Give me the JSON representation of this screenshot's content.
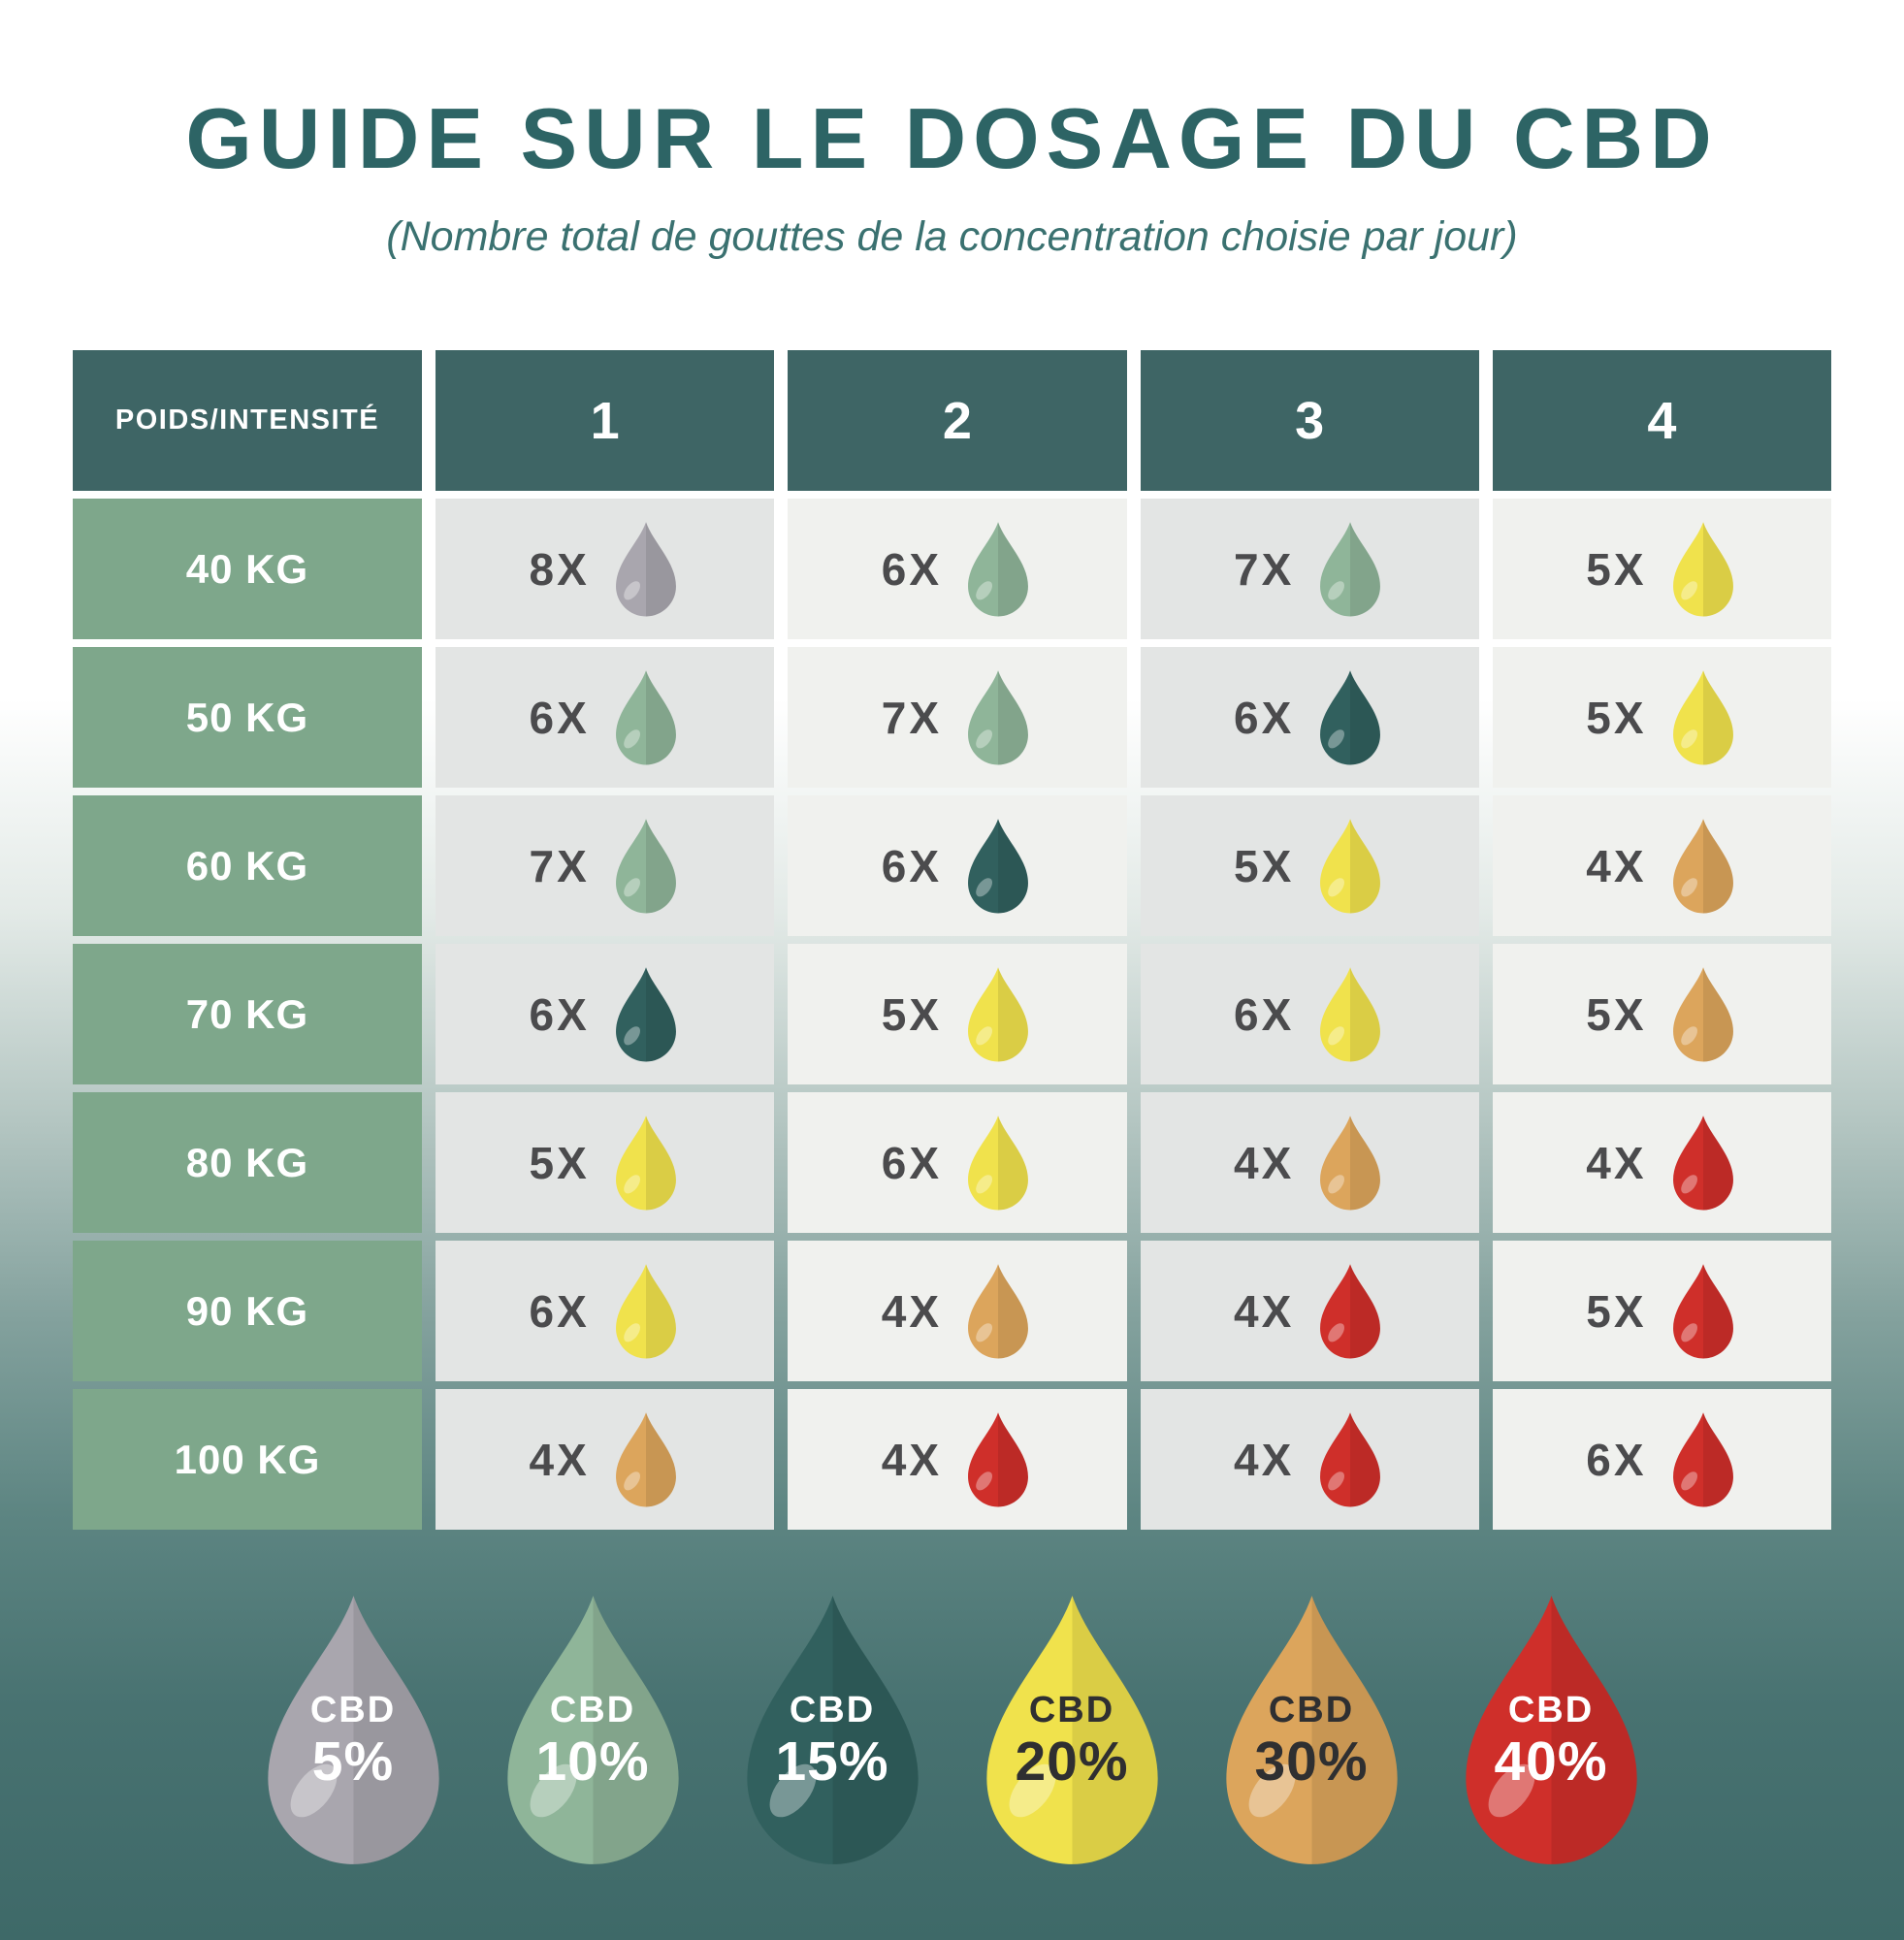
{
  "title": "GUIDE SUR LE DOSAGE DU CBD",
  "subtitle": "(Nombre total de gouttes de la concentration choisie par jour)",
  "chart_data": {
    "type": "table",
    "title": "GUIDE SUR LE DOSAGE DU CBD",
    "subtitle": "(Nombre total de gouttes de la concentration choisie par jour)",
    "corner_header": "POIDS/INTENSITÉ",
    "columns": [
      "1",
      "2",
      "3",
      "4"
    ],
    "row_labels": [
      "40 KG",
      "50 KG",
      "60 KG",
      "70 KG",
      "80 KG",
      "90 KG",
      "100 KG"
    ],
    "count_suffix": "X",
    "cells": [
      [
        {
          "drops": 8,
          "cbd": "5%"
        },
        {
          "drops": 6,
          "cbd": "10%"
        },
        {
          "drops": 7,
          "cbd": "10%"
        },
        {
          "drops": 5,
          "cbd": "20%"
        }
      ],
      [
        {
          "drops": 6,
          "cbd": "10%"
        },
        {
          "drops": 7,
          "cbd": "10%"
        },
        {
          "drops": 6,
          "cbd": "15%"
        },
        {
          "drops": 5,
          "cbd": "20%"
        }
      ],
      [
        {
          "drops": 7,
          "cbd": "10%"
        },
        {
          "drops": 6,
          "cbd": "15%"
        },
        {
          "drops": 5,
          "cbd": "20%"
        },
        {
          "drops": 4,
          "cbd": "30%"
        }
      ],
      [
        {
          "drops": 6,
          "cbd": "15%"
        },
        {
          "drops": 5,
          "cbd": "20%"
        },
        {
          "drops": 6,
          "cbd": "20%"
        },
        {
          "drops": 5,
          "cbd": "30%"
        }
      ],
      [
        {
          "drops": 5,
          "cbd": "20%"
        },
        {
          "drops": 6,
          "cbd": "20%"
        },
        {
          "drops": 4,
          "cbd": "30%"
        },
        {
          "drops": 4,
          "cbd": "40%"
        }
      ],
      [
        {
          "drops": 6,
          "cbd": "20%"
        },
        {
          "drops": 4,
          "cbd": "30%"
        },
        {
          "drops": 4,
          "cbd": "40%"
        },
        {
          "drops": 5,
          "cbd": "40%"
        }
      ],
      [
        {
          "drops": 4,
          "cbd": "30%"
        },
        {
          "drops": 4,
          "cbd": "40%"
        },
        {
          "drops": 4,
          "cbd": "40%"
        },
        {
          "drops": 6,
          "cbd": "40%"
        }
      ]
    ],
    "legend": [
      {
        "label": "CBD",
        "percent": "5%"
      },
      {
        "label": "CBD",
        "percent": "10%"
      },
      {
        "label": "CBD",
        "percent": "15%"
      },
      {
        "label": "CBD",
        "percent": "20%"
      },
      {
        "label": "CBD",
        "percent": "30%"
      },
      {
        "label": "CBD",
        "percent": "40%"
      }
    ]
  },
  "colors": {
    "title_text": "#2d6465",
    "subtitle_text": "#3a7170",
    "header_bg": "#3e6565",
    "weight_col_bg": "#7ea78b",
    "cell_bg_dark": "#e3e5e4",
    "cell_bg_light": "#f0f1ee",
    "count_text": "#4b4b4d",
    "background_bottom": "#3e6968",
    "cbd": {
      "5%": {
        "fill": "#a9a6ae",
        "text": "#ffffff"
      },
      "10%": {
        "fill": "#8fb599",
        "text": "#ffffff"
      },
      "15%": {
        "fill": "#31605e",
        "text": "#ffffff"
      },
      "20%": {
        "fill": "#f0e24c",
        "text": "#2f2f31"
      },
      "30%": {
        "fill": "#dca55c",
        "text": "#2f2f31"
      },
      "40%": {
        "fill": "#cf2f2a",
        "text": "#ffffff"
      }
    }
  }
}
